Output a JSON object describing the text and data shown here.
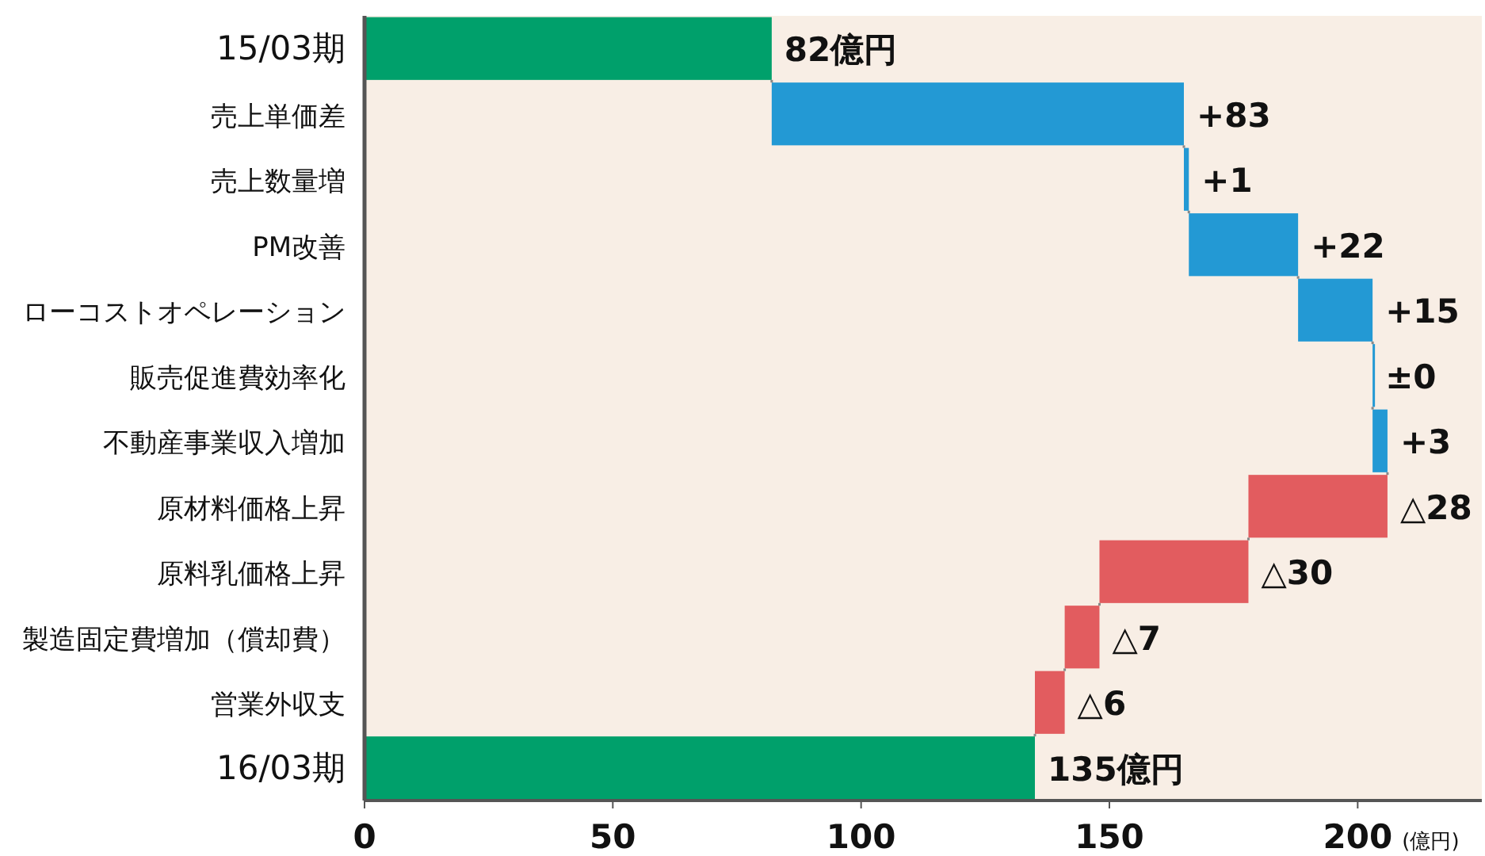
{
  "chart_data": {
    "type": "bar",
    "orientation": "horizontal",
    "categories": [
      "15/03期",
      "売上単価差",
      "売上数量増",
      "PM改善",
      "ローコストオペレーション",
      "販売促進費効率化",
      "不動産事業収入増加",
      "原材料価格上昇",
      "原料乳価格上昇",
      "製造固定費増加（償却費）",
      "営業外収支",
      "16/03期"
    ],
    "values": [
      82,
      83,
      1,
      22,
      15,
      0,
      3,
      -28,
      -30,
      -7,
      -6,
      135
    ],
    "base": [
      0,
      82,
      165,
      166,
      188,
      203,
      203,
      206,
      178,
      148,
      141,
      0
    ],
    "colors": [
      "#00a06b",
      "#2399d4",
      "#2399d4",
      "#2399d4",
      "#2399d4",
      "#2399d4",
      "#2399d4",
      "#e25c5f",
      "#e25c5f",
      "#e25c5f",
      "#e25c5f",
      "#00a06b"
    ],
    "value_labels": [
      "82億円",
      "+83",
      "+1",
      "+22",
      "+15",
      "±0",
      "+3",
      "△28",
      "△30",
      "△7",
      "△6",
      "135億円"
    ],
    "xlabel": "(億円)",
    "xlim": [
      0,
      225
    ],
    "xticks": [
      0,
      50,
      100,
      150,
      200
    ],
    "grid": false
  }
}
